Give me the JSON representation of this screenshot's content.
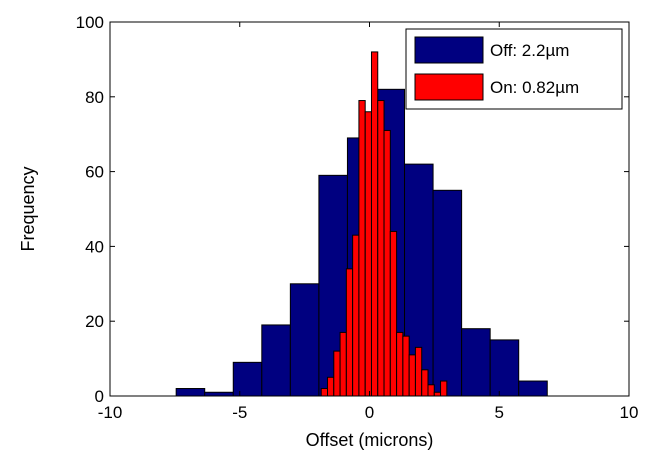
{
  "chart_data": {
    "type": "bar",
    "title": "",
    "xlabel": "Offset (microns)",
    "ylabel": "Frequency",
    "xlim": [
      -10,
      10
    ],
    "ylim": [
      0,
      100
    ],
    "xticks": [
      -10,
      -5,
      0,
      5,
      10
    ],
    "yticks": [
      0,
      20,
      40,
      60,
      80,
      100
    ],
    "grid": false,
    "legend_position": "top-right",
    "series": [
      {
        "name": "Off: 2.2µm",
        "color": "#000080",
        "bin_width": 1.1,
        "bin_starts": [
          -7.45,
          -6.35,
          -5.25,
          -4.15,
          -3.05,
          -1.95,
          -0.85,
          0.25,
          1.35,
          2.45,
          3.55,
          4.65,
          5.75
        ],
        "values": [
          2,
          1,
          9,
          19,
          30,
          59,
          69,
          82,
          62,
          55,
          18,
          15,
          4
        ]
      },
      {
        "name": "On: 0.82µm",
        "color": "#ff0000",
        "bin_width": 0.242,
        "bin_starts": [
          -1.86,
          -1.618,
          -1.376,
          -1.134,
          -0.892,
          -0.65,
          -0.408,
          -0.166,
          0.076,
          0.318,
          0.56,
          0.802,
          1.044,
          1.286,
          1.528,
          1.77,
          2.012,
          2.254,
          2.496,
          2.738
        ],
        "values": [
          2,
          5,
          12,
          17,
          34,
          43,
          79,
          76,
          92,
          79,
          71,
          44,
          17,
          16,
          11,
          13,
          7,
          3,
          1,
          4
        ]
      }
    ]
  }
}
